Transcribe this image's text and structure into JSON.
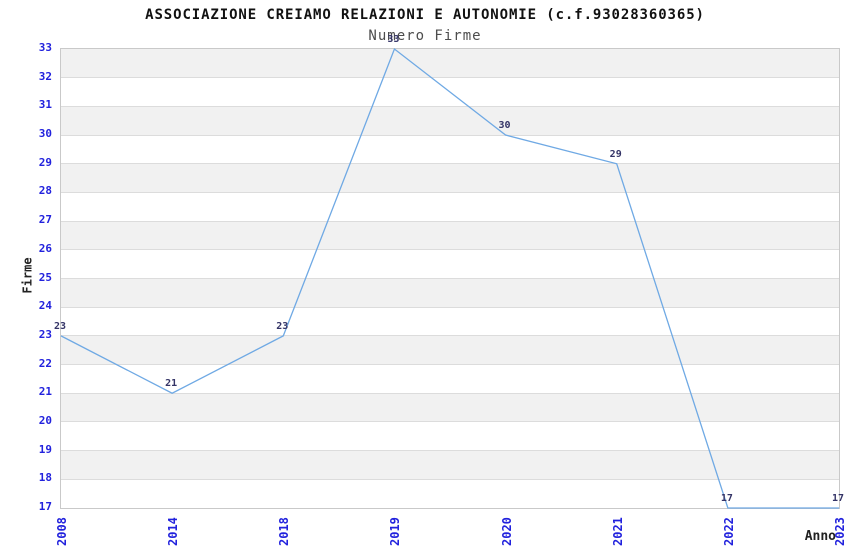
{
  "chart_data": {
    "type": "line",
    "title": "ASSOCIAZIONE CREIAMO RELAZIONI E AUTONOMIE (c.f.93028360365)",
    "subtitle": "Numero Firme",
    "xlabel": "Anno",
    "ylabel": "Firme",
    "categories": [
      "2008",
      "2014",
      "2018",
      "2019",
      "2020",
      "2021",
      "2022",
      "2023"
    ],
    "values": [
      23,
      21,
      23,
      33,
      30,
      29,
      17,
      17
    ],
    "ylim": [
      17,
      33
    ],
    "y_tick_step": 1,
    "grid": true,
    "data_labels": true,
    "legend": "none",
    "colors": {
      "line": "#6FA9E4",
      "tick_label": "#2222DD",
      "data_label": "#333366",
      "band_gray": "#F1F1F1",
      "band_white": "#FFFFFF",
      "plot_border": "#C9C9C9",
      "gridline": "#DCDCDC",
      "title": "#111111",
      "subtitle": "#4D4D4D",
      "axis_title": "#222222",
      "background": "#FFFFFF"
    }
  }
}
